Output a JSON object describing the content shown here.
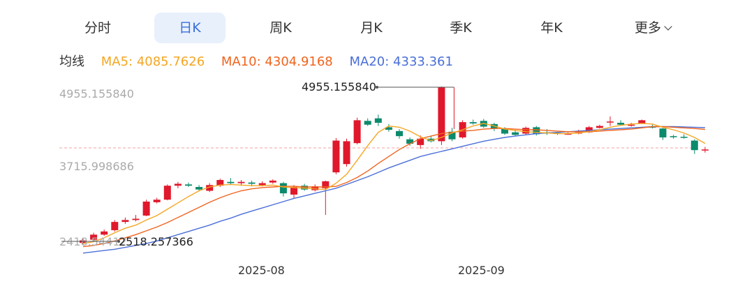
{
  "tabs": [
    {
      "label": "分时",
      "active": false
    },
    {
      "label": "日K",
      "active": true
    },
    {
      "label": "周K",
      "active": false
    },
    {
      "label": "月K",
      "active": false
    },
    {
      "label": "季K",
      "active": false
    },
    {
      "label": "年K",
      "active": false
    },
    {
      "label": "更多",
      "active": false
    }
  ],
  "ma": {
    "title": "均线",
    "ma5": "MA5: 4085.7626",
    "ma10": "MA10: 4304.9168",
    "ma20": "MA20: 4333.361"
  },
  "colors": {
    "up": "#e0182b",
    "down": "#0c8a6c",
    "ma5": "#f5a623",
    "ma10": "#f0641e",
    "ma20": "#4a6fd8",
    "active_tab": "#3a6fd8",
    "ref_line": "#f2a0a0"
  },
  "chart_data": {
    "type": "candlestick",
    "y_axis_labels": [
      "4955.155840",
      "3715.998686"
    ],
    "max_annotation": "4955.155840",
    "min_annotation": "2518.257366",
    "min_annotation_overlap_text": "2418.54412",
    "x_labels": [
      "2025-08",
      "2025-09"
    ],
    "candles": [
      [
        2520,
        2560,
        2490,
        2600
      ],
      [
        2570,
        2650,
        2550,
        2680
      ],
      [
        2650,
        2700,
        2630,
        2730
      ],
      [
        2720,
        2850,
        2700,
        2880
      ],
      [
        2850,
        2880,
        2820,
        2920
      ],
      [
        2880,
        2900,
        2860,
        2960
      ],
      [
        2950,
        3170,
        2940,
        3200
      ],
      [
        3160,
        3200,
        3140,
        3230
      ],
      [
        3200,
        3420,
        3190,
        3440
      ],
      [
        3420,
        3450,
        3380,
        3480
      ],
      [
        3440,
        3420,
        3400,
        3470
      ],
      [
        3400,
        3360,
        3330,
        3430
      ],
      [
        3340,
        3430,
        3320,
        3460
      ],
      [
        3420,
        3510,
        3400,
        3530
      ],
      [
        3480,
        3460,
        3430,
        3540
      ],
      [
        3460,
        3480,
        3420,
        3510
      ],
      [
        3470,
        3450,
        3410,
        3500
      ],
      [
        3430,
        3460,
        3410,
        3490
      ],
      [
        3470,
        3500,
        3450,
        3520
      ],
      [
        3460,
        3300,
        3250,
        3480
      ],
      [
        3280,
        3400,
        3220,
        3430
      ],
      [
        3420,
        3360,
        3340,
        3450
      ],
      [
        3350,
        3410,
        3330,
        3440
      ],
      [
        3380,
        3490,
        2960,
        3500
      ],
      [
        3630,
        4130,
        3600,
        4170
      ],
      [
        3760,
        4120,
        3720,
        4160
      ],
      [
        4090,
        4450,
        4070,
        4490
      ],
      [
        4440,
        4380,
        4360,
        4480
      ],
      [
        4480,
        4410,
        4360,
        4540
      ],
      [
        4340,
        4300,
        4270,
        4390
      ],
      [
        4280,
        4200,
        4160,
        4310
      ],
      [
        4150,
        4080,
        4050,
        4180
      ],
      [
        4060,
        4160,
        4000,
        4210
      ],
      [
        4160,
        4120,
        4100,
        4200
      ],
      [
        4120,
        4970,
        4060,
        4980
      ],
      [
        4270,
        4150,
        4120,
        4330
      ],
      [
        4180,
        4420,
        4160,
        4450
      ],
      [
        4420,
        4400,
        4380,
        4460
      ],
      [
        4440,
        4350,
        4330,
        4470
      ],
      [
        4390,
        4320,
        4280,
        4410
      ],
      [
        4320,
        4240,
        4220,
        4340
      ],
      [
        4260,
        4220,
        4200,
        4300
      ],
      [
        4240,
        4330,
        4220,
        4350
      ],
      [
        4340,
        4230,
        4210,
        4360
      ],
      [
        4260,
        4240,
        4220,
        4310
      ],
      [
        4250,
        4240,
        4220,
        4260
      ],
      [
        4230,
        4240,
        4220,
        4260
      ],
      [
        4240,
        4260,
        4230,
        4300
      ],
      [
        4260,
        4340,
        4250,
        4360
      ],
      [
        4330,
        4360,
        4320,
        4380
      ],
      [
        4420,
        4430,
        4360,
        4510
      ],
      [
        4410,
        4380,
        4370,
        4450
      ],
      [
        4380,
        4380,
        4350,
        4410
      ],
      [
        4400,
        4450,
        4390,
        4460
      ],
      [
        4350,
        4340,
        4320,
        4380
      ],
      [
        4320,
        4180,
        4140,
        4330
      ],
      [
        4200,
        4190,
        4160,
        4220
      ],
      [
        4190,
        4180,
        4160,
        4230
      ],
      [
        4130,
        3980,
        3920,
        4150
      ],
      [
        3990,
        3990,
        3940,
        4030
      ]
    ],
    "ma5": [
      2510,
      2540,
      2600,
      2680,
      2750,
      2800,
      2880,
      2950,
      3050,
      3150,
      3250,
      3340,
      3400,
      3430,
      3440,
      3430,
      3420,
      3420,
      3430,
      3400,
      3390,
      3380,
      3370,
      3360,
      3460,
      3600,
      3820,
      4050,
      4260,
      4360,
      4340,
      4280,
      4190,
      4130,
      4180,
      4250,
      4300,
      4360,
      4400,
      4360,
      4310,
      4290,
      4270,
      4260,
      4250,
      4240,
      4240,
      4250,
      4270,
      4300,
      4340,
      4370,
      4390,
      4400,
      4390,
      4340,
      4300,
      4250,
      4180,
      4085
    ],
    "ma10": [
      2460,
      2480,
      2510,
      2550,
      2600,
      2650,
      2710,
      2770,
      2840,
      2920,
      3000,
      3080,
      3160,
      3230,
      3290,
      3340,
      3370,
      3390,
      3400,
      3410,
      3410,
      3400,
      3400,
      3400,
      3410,
      3470,
      3550,
      3650,
      3770,
      3880,
      3990,
      4080,
      4160,
      4200,
      4240,
      4260,
      4280,
      4290,
      4310,
      4320,
      4320,
      4310,
      4300,
      4300,
      4290,
      4280,
      4270,
      4270,
      4270,
      4280,
      4290,
      4300,
      4310,
      4330,
      4350,
      4350,
      4340,
      4330,
      4320,
      4305
    ],
    "ma20": [
      2360,
      2380,
      2400,
      2420,
      2450,
      2480,
      2510,
      2550,
      2600,
      2650,
      2700,
      2750,
      2800,
      2860,
      2910,
      2970,
      3020,
      3070,
      3120,
      3170,
      3220,
      3260,
      3300,
      3340,
      3380,
      3440,
      3500,
      3560,
      3630,
      3700,
      3760,
      3820,
      3880,
      3920,
      3960,
      4000,
      4040,
      4080,
      4120,
      4150,
      4180,
      4200,
      4220,
      4240,
      4250,
      4260,
      4270,
      4280,
      4290,
      4300,
      4310,
      4320,
      4330,
      4340,
      4350,
      4350,
      4350,
      4345,
      4340,
      4333
    ]
  }
}
